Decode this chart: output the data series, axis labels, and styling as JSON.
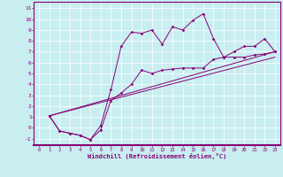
{
  "xlabel": "Windchill (Refroidissement éolien,°C)",
  "bg_color": "#c8eef0",
  "line_color": "#880077",
  "grid_color": "#ffffff",
  "xlim": [
    -0.5,
    23.5
  ],
  "ylim": [
    -1.6,
    11.6
  ],
  "xticks": [
    0,
    1,
    2,
    3,
    4,
    5,
    6,
    7,
    8,
    9,
    10,
    11,
    12,
    13,
    14,
    15,
    16,
    17,
    18,
    19,
    20,
    21,
    22,
    23
  ],
  "yticks": [
    -1,
    0,
    1,
    2,
    3,
    4,
    5,
    6,
    7,
    8,
    9,
    10,
    11
  ],
  "series1_x": [
    1,
    2,
    3,
    4,
    5,
    6,
    7,
    8,
    9,
    10,
    11,
    12,
    13,
    14,
    15,
    16,
    17,
    18,
    19,
    20,
    21,
    22,
    23
  ],
  "series1_y": [
    1.1,
    -0.3,
    -0.5,
    -0.7,
    -1.1,
    -0.2,
    2.5,
    3.2,
    4.0,
    5.3,
    5.0,
    5.3,
    5.4,
    5.5,
    5.5,
    5.5,
    6.3,
    6.5,
    6.5,
    6.5,
    6.7,
    6.8,
    7.0
  ],
  "series2_x": [
    1,
    2,
    3,
    4,
    5,
    6,
    7,
    8,
    9,
    10,
    11,
    12,
    13,
    14,
    15,
    16,
    17,
    18,
    19,
    20,
    21,
    22,
    23
  ],
  "series2_y": [
    1.1,
    -0.3,
    -0.5,
    -0.7,
    -1.1,
    0.2,
    3.5,
    7.5,
    8.8,
    8.7,
    9.0,
    7.7,
    9.3,
    9.0,
    9.9,
    10.5,
    8.2,
    6.5,
    7.0,
    7.5,
    7.5,
    8.2,
    7.0
  ],
  "line1_x": [
    1,
    23
  ],
  "line1_y": [
    1.1,
    7.0
  ],
  "line2_x": [
    1,
    23
  ],
  "line2_y": [
    1.1,
    6.5
  ]
}
